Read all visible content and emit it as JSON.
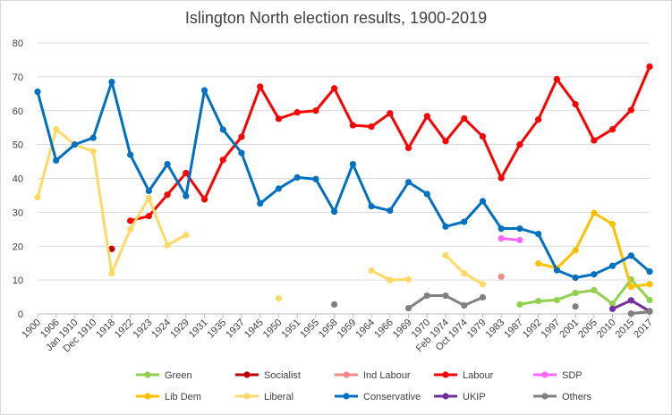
{
  "chart_data": {
    "type": "line",
    "title": "Islington North election results, 1900-2019",
    "xlabel": "",
    "ylabel": "",
    "ylim": [
      0,
      80
    ],
    "yticks": [
      0,
      10,
      20,
      30,
      40,
      50,
      60,
      70,
      80
    ],
    "grid": true,
    "legend_position": "bottom",
    "categories": [
      "1900",
      "1906",
      "Jan 1910",
      "Dec 1910",
      "1918",
      "1922",
      "1923",
      "1924",
      "1929",
      "1931",
      "1935",
      "1937",
      "1945",
      "1950",
      "1951",
      "1955",
      "1958",
      "1959",
      "1964",
      "1966",
      "1969",
      "1970",
      "Feb 1974",
      "Oct 1974",
      "1979",
      "1983",
      "1987",
      "1992",
      "1997",
      "2001",
      "2005",
      "2010",
      "2015",
      "2017"
    ],
    "series": [
      {
        "name": "Green",
        "color": "#92d050",
        "values": [
          null,
          null,
          null,
          null,
          null,
          null,
          null,
          null,
          null,
          null,
          null,
          null,
          null,
          null,
          null,
          null,
          null,
          null,
          null,
          null,
          null,
          null,
          null,
          null,
          null,
          null,
          2.8,
          3.8,
          4.1,
          6.2,
          7.0,
          3.0,
          10.2,
          4.1
        ]
      },
      {
        "name": "Socialist",
        "color": "#c00000",
        "values": [
          null,
          null,
          null,
          null,
          19.2,
          null,
          null,
          null,
          null,
          null,
          null,
          null,
          null,
          null,
          null,
          null,
          null,
          null,
          null,
          null,
          null,
          null,
          null,
          null,
          null,
          null,
          null,
          null,
          null,
          null,
          null,
          null,
          null,
          null
        ]
      },
      {
        "name": "Ind Labour",
        "color": "#f28b8b",
        "values": [
          null,
          null,
          null,
          null,
          null,
          null,
          null,
          null,
          null,
          null,
          null,
          null,
          null,
          null,
          null,
          null,
          null,
          null,
          null,
          null,
          null,
          null,
          null,
          null,
          null,
          11.0,
          null,
          null,
          null,
          null,
          null,
          null,
          null,
          null
        ]
      },
      {
        "name": "Labour",
        "color": "#ff0000",
        "values": [
          null,
          null,
          null,
          null,
          null,
          27.5,
          28.9,
          35.2,
          41.6,
          33.8,
          45.5,
          52.3,
          67.1,
          57.6,
          59.5,
          60.0,
          66.6,
          55.7,
          55.3,
          59.2,
          49.0,
          58.4,
          51.0,
          57.7,
          52.4,
          40.1,
          50.0,
          57.4,
          69.3,
          61.9,
          51.2,
          54.5,
          60.2,
          73.0
        ]
      },
      {
        "name": "SDP",
        "color": "#ff66ff",
        "values": [
          null,
          null,
          null,
          null,
          null,
          null,
          null,
          null,
          null,
          null,
          null,
          null,
          null,
          null,
          null,
          null,
          null,
          null,
          null,
          null,
          null,
          null,
          null,
          null,
          null,
          22.3,
          21.8,
          null,
          null,
          null,
          null,
          null,
          null,
          null
        ]
      },
      {
        "name": "Lib Dem",
        "color": "#ffc000",
        "values": [
          null,
          null,
          null,
          null,
          null,
          null,
          null,
          null,
          null,
          null,
          null,
          null,
          null,
          null,
          null,
          null,
          null,
          null,
          null,
          null,
          null,
          null,
          null,
          null,
          null,
          null,
          null,
          14.9,
          13.5,
          18.8,
          29.8,
          26.5,
          8.0,
          8.8
        ]
      },
      {
        "name": "Liberal",
        "color": "#ffd966",
        "values": [
          34.4,
          54.5,
          50.0,
          48.0,
          12.0,
          25.0,
          34.2,
          20.3,
          23.3,
          null,
          null,
          null,
          null,
          4.6,
          null,
          null,
          null,
          null,
          12.8,
          10.0,
          10.2,
          null,
          17.3,
          12.0,
          8.8,
          null,
          null,
          null,
          null,
          null,
          null,
          null,
          null,
          null
        ]
      },
      {
        "name": "Conservative",
        "color": "#0070c0",
        "values": [
          65.6,
          45.3,
          50.0,
          52.0,
          68.5,
          47.0,
          36.3,
          44.2,
          34.8,
          66.0,
          54.4,
          47.5,
          32.6,
          37.0,
          40.3,
          39.8,
          30.2,
          44.2,
          31.8,
          30.5,
          38.9,
          35.4,
          25.8,
          27.2,
          33.3,
          25.2,
          25.2,
          23.6,
          12.9,
          10.7,
          11.7,
          14.2,
          17.2,
          12.5
        ]
      },
      {
        "name": "UKIP",
        "color": "#7030a0",
        "values": [
          null,
          null,
          null,
          null,
          null,
          null,
          null,
          null,
          null,
          null,
          null,
          null,
          null,
          null,
          null,
          null,
          null,
          null,
          null,
          null,
          null,
          null,
          null,
          null,
          null,
          null,
          null,
          null,
          null,
          null,
          null,
          1.5,
          4.0,
          0.8
        ]
      },
      {
        "name": "Others",
        "color": "#808080",
        "values": [
          null,
          null,
          null,
          null,
          null,
          null,
          null,
          null,
          null,
          null,
          null,
          null,
          null,
          null,
          null,
          null,
          2.8,
          null,
          null,
          null,
          1.7,
          5.4,
          5.4,
          2.5,
          4.9,
          null,
          null,
          null,
          null,
          2.2,
          null,
          null,
          0.1,
          0.7
        ]
      }
    ],
    "legend_order": [
      "Green",
      "Socialist",
      "Ind Labour",
      "Labour",
      "SDP",
      "Lib Dem",
      "Liberal",
      "Conservative",
      "UKIP",
      "Others"
    ]
  }
}
